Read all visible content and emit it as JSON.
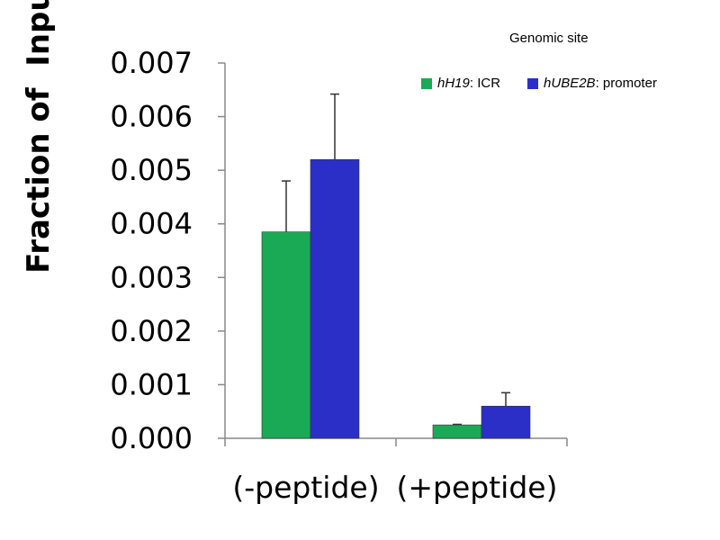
{
  "chart_data": {
    "type": "bar",
    "ylabel": "Fraction of  Input",
    "categories": [
      "(-peptide)",
      "(+peptide)"
    ],
    "ylim": [
      0,
      0.007
    ],
    "yticks": [
      "0.000",
      "0.001",
      "0.002",
      "0.003",
      "0.004",
      "0.005",
      "0.006",
      "0.007"
    ],
    "legend_title": "Genomic site",
    "legend_position": "top-right",
    "grid": false,
    "series": [
      {
        "name_italic": "hH19",
        "name_rest": ": ICR",
        "color": "#1aaa55",
        "values": [
          0.00385,
          0.00025
        ],
        "error": [
          0.00095,
          1e-05
        ]
      },
      {
        "name_italic": "hUBE2B",
        "name_rest": ": promoter",
        "color": "#2b2fc7",
        "values": [
          0.0052,
          0.0006
        ],
        "error": [
          0.00122,
          0.00025
        ]
      }
    ]
  }
}
